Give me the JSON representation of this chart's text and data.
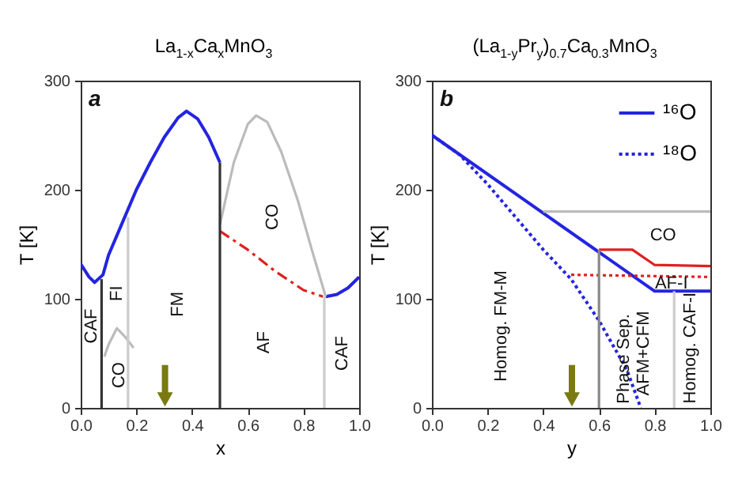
{
  "chart_data": [
    {
      "type": "line",
      "title": "La$_{1-x}$Ca$_{x}$MnO$_{3}$",
      "xlabel": "x",
      "ylabel": "T [K]",
      "xlim": [
        0,
        1
      ],
      "ylim": [
        0,
        300
      ],
      "xticks": [
        {
          "value": 0,
          "label": "0.0"
        },
        {
          "value": 0.2,
          "label": "0.2"
        },
        {
          "value": 0.4,
          "label": "0.4"
        },
        {
          "value": 0.6,
          "label": "0.6"
        },
        {
          "value": 0.8,
          "label": "0.8"
        },
        {
          "value": 1,
          "label": "1.0"
        }
      ],
      "yticks": [
        0,
        100,
        200,
        300
      ],
      "grid": false,
      "marker": "none",
      "series": [
        {
          "color": "#2424e0",
          "x": [
            0,
            0.03,
            0.05,
            0.08,
            0.1,
            0.15,
            0.2,
            0.25,
            0.3,
            0.35,
            0.38,
            0.42,
            0.46,
            0.5
          ],
          "values": [
            132,
            120,
            115,
            122,
            140,
            170,
            200,
            225,
            248,
            266,
            272,
            265,
            248,
            225
          ]
        },
        {
          "color": "#2424e0",
          "x": [
            0.88,
            0.92,
            0.96,
            1.0
          ],
          "values": [
            102,
            104,
            110,
            120
          ]
        },
        {
          "color": "#bbbbbb",
          "x": [
            0.5,
            0.55,
            0.6,
            0.63,
            0.67,
            0.72,
            0.78,
            0.83,
            0.88
          ],
          "values": [
            168,
            225,
            260,
            268,
            262,
            235,
            190,
            145,
            102
          ]
        },
        {
          "color": "#bbbbbb",
          "x": [
            0.085,
            0.1,
            0.13,
            0.16,
            0.19
          ],
          "values": [
            47,
            58,
            73,
            65,
            55
          ]
        },
        {
          "color": "#e02020",
          "line_style": "dashed",
          "x": [
            0.5,
            0.6,
            0.7,
            0.8,
            0.87
          ],
          "values": [
            162,
            145,
            125,
            108,
            102
          ]
        },
        {
          "color": "#333333",
          "x": [
            0.075,
            0.075
          ],
          "values": [
            0,
            118
          ]
        },
        {
          "color": "#333333",
          "x": [
            0.5,
            0.5
          ],
          "values": [
            0,
            225
          ]
        },
        {
          "color": "#cccccc",
          "x": [
            0.17,
            0.17
          ],
          "values": [
            0,
            175
          ]
        },
        {
          "color": "#cccccc",
          "x": [
            0.875,
            0.875
          ],
          "values": [
            0,
            102
          ]
        }
      ],
      "annotations": [
        "a",
        "CAF",
        "FI",
        "FM",
        "CO",
        "CO",
        "AF",
        "CAF"
      ]
    },
    {
      "type": "line",
      "title": "(La$_{1-y}$Pr$_{y}$)$_{0.7}$Ca$_{0.3}$MnO$_{3}$",
      "xlabel": "y",
      "ylabel": "T [K]",
      "xlim": [
        0,
        1
      ],
      "ylim": [
        0,
        300
      ],
      "xticks": [
        {
          "value": 0,
          "label": "0.0"
        },
        {
          "value": 0.2,
          "label": "0.2"
        },
        {
          "value": 0.4,
          "label": "0.4"
        },
        {
          "value": 0.6,
          "label": "0.6"
        },
        {
          "value": 0.8,
          "label": "0.8"
        },
        {
          "value": 1,
          "label": "1.0"
        }
      ],
      "yticks": [
        0,
        100,
        200,
        300
      ],
      "grid": false,
      "marker": "none",
      "legend": "top right",
      "series": [
        {
          "name": "¹⁶O",
          "color": "#2424e0",
          "line_style": "solid",
          "x": [
            0,
            0.8,
            1.0
          ],
          "values": [
            250,
            107,
            107
          ]
        },
        {
          "name": "¹⁸O",
          "color": "#2424e0",
          "line_style": "dotted",
          "x": [
            0,
            0.1,
            0.2,
            0.3,
            0.4,
            0.5,
            0.6,
            0.7,
            0.75
          ],
          "values": [
            250,
            232,
            205,
            175,
            145,
            118,
            80,
            35,
            0
          ]
        },
        {
          "color": "#bbbbbb",
          "x": [
            0.4,
            1.0
          ],
          "values": [
            180,
            180
          ]
        },
        {
          "color": "#e02020",
          "x": [
            0.6,
            0.72,
            0.8,
            1.0
          ],
          "values": [
            145,
            145,
            131,
            130
          ]
        },
        {
          "color": "#e02020",
          "line_style": "dotted",
          "x": [
            0.5,
            1.0
          ],
          "values": [
            122,
            120
          ]
        },
        {
          "color": "#888888",
          "x": [
            0.6,
            0.6
          ],
          "values": [
            0,
            145
          ]
        },
        {
          "color": "#cccccc",
          "x": [
            0.87,
            0.87
          ],
          "values": [
            0,
            107
          ]
        }
      ],
      "annotations": [
        "b",
        "CO",
        "AF-I",
        "Homog. FM-M",
        "Phase Sep.",
        "AFM+CFM",
        "Homog. CAF-I"
      ]
    }
  ]
}
